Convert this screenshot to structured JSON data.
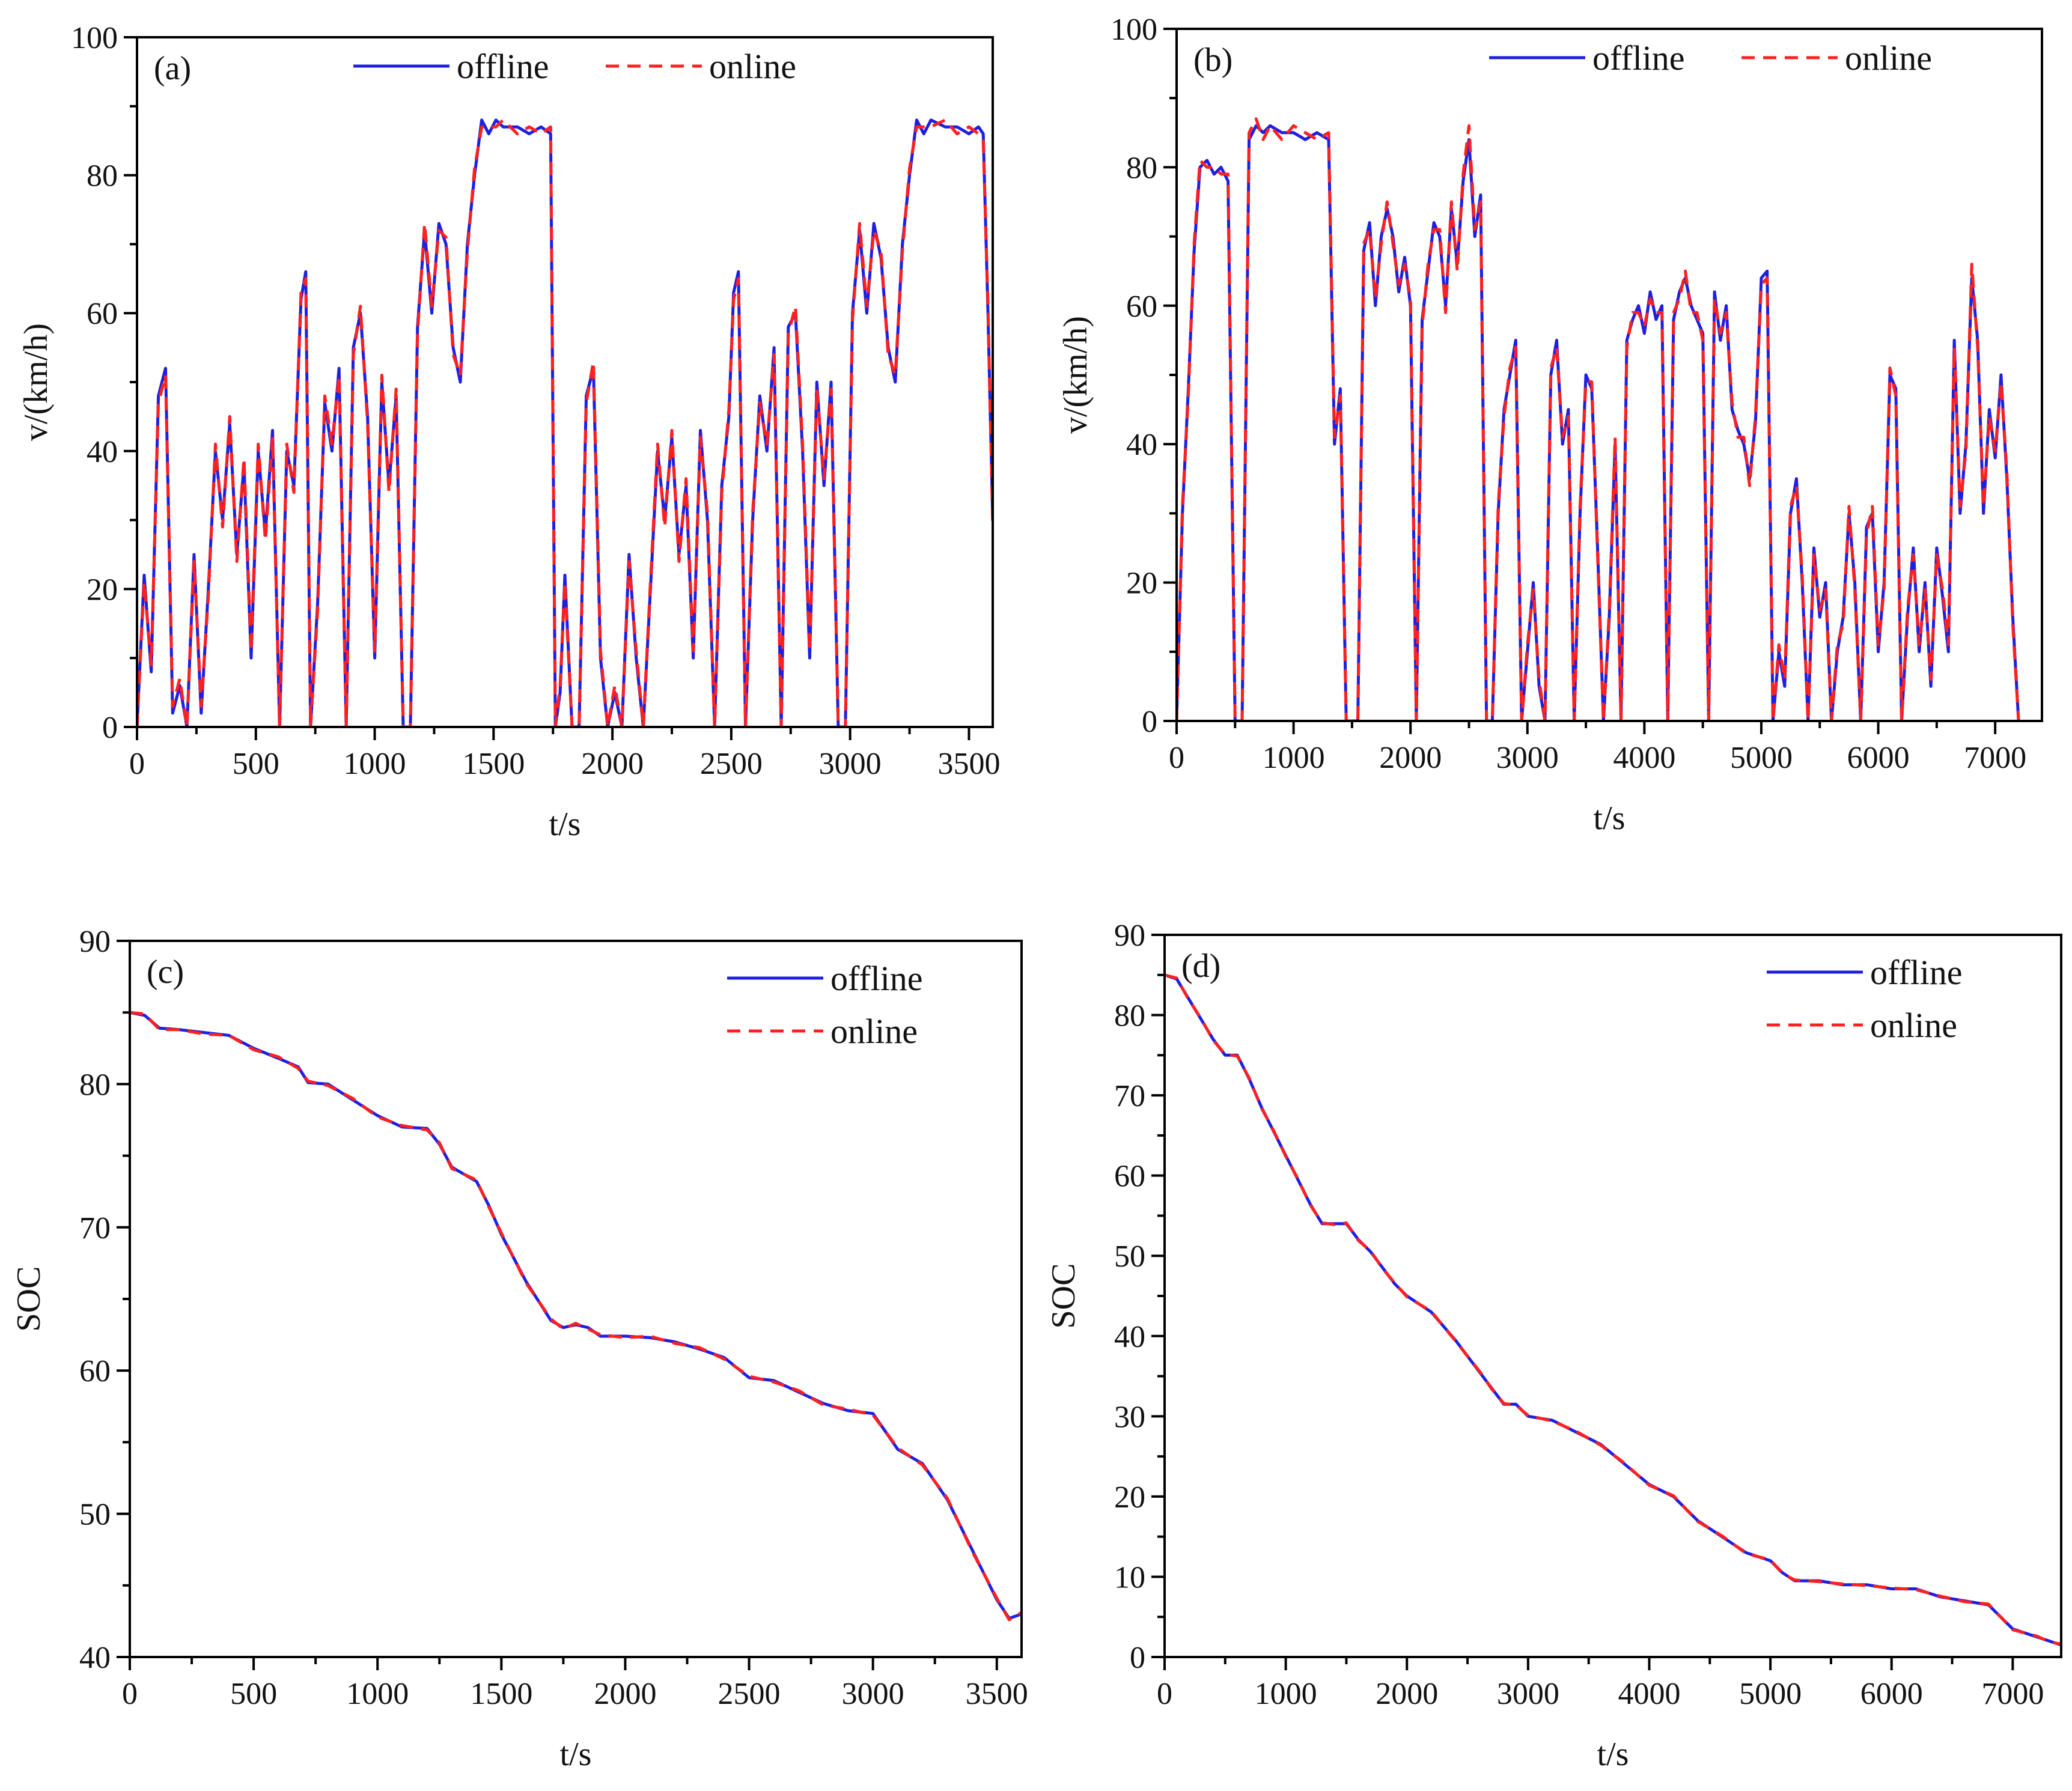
{
  "colors": {
    "offline": "#1f1fe0",
    "online": "#ff2020",
    "axis": "#000000"
  },
  "chart_data": [
    {
      "type": "line",
      "panel": "(a)",
      "xlabel": "t/s",
      "ylabel": "v/(km/h)",
      "xlim": [
        0,
        3600
      ],
      "ylim": [
        0,
        100
      ],
      "xticks": [
        0,
        500,
        1000,
        1500,
        2000,
        2500,
        3000,
        3500
      ],
      "yticks": [
        0,
        20,
        40,
        60,
        80,
        100
      ],
      "legend": [
        "offline",
        "online"
      ],
      "legend_layout": "horizontal",
      "legend_position": "top-center",
      "series_key": "speed",
      "x": [
        0,
        30,
        60,
        90,
        120,
        150,
        180,
        210,
        240,
        270,
        300,
        330,
        360,
        390,
        420,
        450,
        480,
        510,
        540,
        570,
        600,
        630,
        660,
        690,
        710,
        730,
        760,
        790,
        820,
        850,
        880,
        910,
        940,
        970,
        1000,
        1030,
        1060,
        1090,
        1120,
        1150,
        1180,
        1210,
        1240,
        1270,
        1300,
        1330,
        1360,
        1390,
        1420,
        1450,
        1480,
        1510,
        1540,
        1600,
        1650,
        1700,
        1740,
        1760,
        1780,
        1800,
        1830,
        1860,
        1890,
        1920,
        1950,
        1980,
        2010,
        2040,
        2070,
        2100,
        2130,
        2160,
        2190,
        2220,
        2250,
        2280,
        2310,
        2340,
        2370,
        2400,
        2430,
        2460,
        2490,
        2510,
        2530,
        2560,
        2590,
        2620,
        2650,
        2680,
        2710,
        2740,
        2770,
        2800,
        2830,
        2860,
        2890,
        2920,
        2950,
        2980,
        3010,
        3040,
        3070,
        3100,
        3130,
        3160,
        3190,
        3220,
        3250,
        3280,
        3310,
        3340,
        3400,
        3450,
        3500,
        3540,
        3560,
        3580,
        3600
      ],
      "offline": [
        0,
        22,
        8,
        48,
        52,
        2,
        6,
        0,
        25,
        2,
        20,
        40,
        30,
        44,
        25,
        38,
        10,
        40,
        28,
        43,
        0,
        40,
        35,
        62,
        66,
        0,
        18,
        47,
        40,
        52,
        0,
        55,
        60,
        45,
        10,
        50,
        35,
        48,
        0,
        0,
        58,
        72,
        60,
        73,
        70,
        55,
        50,
        70,
        80,
        88,
        86,
        88,
        87,
        87,
        86,
        87,
        86,
        0,
        5,
        22,
        0,
        0,
        48,
        52,
        10,
        0,
        5,
        0,
        25,
        10,
        0,
        20,
        40,
        30,
        42,
        25,
        35,
        10,
        43,
        30,
        0,
        35,
        45,
        63,
        66,
        0,
        30,
        48,
        40,
        55,
        0,
        58,
        60,
        40,
        10,
        50,
        35,
        50,
        0,
        0,
        60,
        72,
        60,
        73,
        68,
        55,
        50,
        70,
        80,
        88,
        86,
        88,
        87,
        87,
        86,
        87,
        86,
        60,
        30,
        0
      ],
      "online": [
        0,
        21,
        9,
        47,
        51,
        3,
        7,
        0,
        24,
        3,
        19,
        41,
        29,
        45,
        24,
        39,
        11,
        41,
        27,
        42,
        0,
        41,
        34,
        63,
        65,
        0,
        17,
        48,
        41,
        51,
        0,
        54,
        61,
        44,
        11,
        51,
        34,
        49,
        0,
        0,
        57,
        73,
        61,
        72,
        71,
        54,
        51,
        69,
        81,
        87,
        87,
        87,
        88,
        86,
        87,
        86,
        87,
        0,
        6,
        21,
        0,
        0,
        47,
        53,
        11,
        0,
        6,
        0,
        24,
        11,
        0,
        21,
        41,
        29,
        43,
        24,
        36,
        11,
        42,
        31,
        0,
        34,
        46,
        62,
        65,
        0,
        31,
        47,
        41,
        54,
        0,
        57,
        61,
        41,
        11,
        49,
        36,
        49,
        0,
        0,
        59,
        73,
        61,
        72,
        69,
        54,
        51,
        69,
        81,
        87,
        87,
        87,
        88,
        86,
        87,
        86,
        85,
        61,
        29,
        0
      ]
    },
    {
      "type": "line",
      "panel": "(b)",
      "xlabel": "t/s",
      "ylabel": "v/(km/h)",
      "xlim": [
        0,
        7400
      ],
      "ylim": [
        0,
        100
      ],
      "xticks": [
        0,
        1000,
        2000,
        3000,
        4000,
        5000,
        6000,
        7000
      ],
      "yticks": [
        0,
        20,
        40,
        60,
        80,
        100
      ],
      "legend": [
        "offline",
        "online"
      ],
      "legend_layout": "horizontal",
      "legend_position": "top-right",
      "series_key": "speed",
      "x": [
        0,
        50,
        100,
        150,
        200,
        260,
        320,
        380,
        440,
        500,
        540,
        560,
        620,
        680,
        740,
        800,
        900,
        1000,
        1100,
        1200,
        1300,
        1350,
        1400,
        1450,
        1500,
        1550,
        1600,
        1650,
        1700,
        1750,
        1800,
        1850,
        1900,
        1950,
        2000,
        2050,
        2100,
        2150,
        2200,
        2250,
        2300,
        2350,
        2400,
        2450,
        2500,
        2550,
        2600,
        2650,
        2700,
        2750,
        2800,
        2850,
        2900,
        2950,
        3000,
        3050,
        3100,
        3150,
        3200,
        3250,
        3300,
        3350,
        3400,
        3450,
        3500,
        3550,
        3600,
        3650,
        3700,
        3750,
        3800,
        3850,
        3900,
        3950,
        4000,
        4050,
        4100,
        4150,
        4200,
        4250,
        4300,
        4350,
        4400,
        4450,
        4500,
        4550,
        4600,
        4650,
        4700,
        4750,
        4800,
        4850,
        4900,
        4950,
        5000,
        5050,
        5100,
        5150,
        5200,
        5250,
        5300,
        5350,
        5400,
        5450,
        5500,
        5550,
        5600,
        5650,
        5700,
        5750,
        5800,
        5850,
        5900,
        5950,
        6000,
        6050,
        6100,
        6150,
        6200,
        6250,
        6300,
        6350,
        6400,
        6450,
        6500,
        6550,
        6600,
        6650,
        6700,
        6750,
        6800,
        6850,
        6900,
        6950,
        7000,
        7050,
        7100,
        7150,
        7200,
        7250,
        7300,
        7350,
        7400
      ],
      "offline": [
        0,
        30,
        48,
        68,
        80,
        81,
        79,
        80,
        78,
        0,
        0,
        0,
        84,
        86,
        85,
        86,
        85,
        85,
        84,
        85,
        84,
        40,
        48,
        0,
        0,
        0,
        68,
        72,
        60,
        70,
        74,
        70,
        62,
        67,
        60,
        0,
        58,
        65,
        72,
        70,
        60,
        74,
        66,
        78,
        84,
        70,
        76,
        0,
        0,
        30,
        45,
        50,
        55,
        0,
        10,
        20,
        5,
        0,
        50,
        55,
        40,
        45,
        0,
        30,
        50,
        48,
        25,
        0,
        15,
        40,
        0,
        55,
        58,
        60,
        56,
        62,
        58,
        60,
        0,
        58,
        62,
        64,
        60,
        58,
        56,
        0,
        62,
        55,
        60,
        45,
        42,
        40,
        35,
        43,
        64,
        65,
        0,
        10,
        5,
        30,
        35,
        20,
        0,
        25,
        15,
        20,
        0,
        10,
        15,
        30,
        20,
        0,
        28,
        30,
        10,
        20,
        50,
        48,
        0,
        15,
        25,
        10,
        20,
        5,
        25,
        18,
        10,
        55,
        30,
        40,
        64,
        55,
        30,
        45,
        38,
        50,
        35,
        15,
        0
      ],
      "online": [
        0,
        31,
        47,
        69,
        81,
        80,
        80,
        79,
        79,
        0,
        0,
        0,
        85,
        87,
        84,
        86,
        84,
        86,
        85,
        84,
        85,
        41,
        47,
        0,
        0,
        0,
        69,
        71,
        61,
        69,
        75,
        69,
        63,
        66,
        61,
        0,
        57,
        66,
        71,
        71,
        59,
        75,
        65,
        79,
        86,
        71,
        75,
        0,
        0,
        31,
        44,
        51,
        54,
        0,
        11,
        19,
        6,
        0,
        51,
        54,
        41,
        44,
        0,
        31,
        49,
        49,
        24,
        0,
        16,
        41,
        0,
        54,
        59,
        59,
        57,
        61,
        59,
        59,
        0,
        59,
        61,
        65,
        59,
        59,
        55,
        0,
        61,
        56,
        59,
        46,
        41,
        41,
        34,
        44,
        63,
        64,
        0,
        11,
        6,
        31,
        34,
        21,
        0,
        24,
        16,
        19,
        0,
        11,
        14,
        31,
        19,
        0,
        27,
        31,
        11,
        19,
        51,
        47,
        0,
        16,
        24,
        11,
        19,
        6,
        24,
        19,
        11,
        54,
        31,
        39,
        66,
        54,
        31,
        44,
        39,
        49,
        36,
        14,
        0
      ]
    },
    {
      "type": "line",
      "panel": "(c)",
      "xlabel": "t/s",
      "ylabel": "SOC",
      "xlim": [
        0,
        3600
      ],
      "ylim": [
        40,
        90
      ],
      "xticks": [
        0,
        500,
        1000,
        1500,
        2000,
        2500,
        3000,
        3500
      ],
      "yticks": [
        40,
        50,
        60,
        70,
        80,
        90
      ],
      "legend": [
        "offline",
        "online"
      ],
      "legend_layout": "vertical",
      "legend_position": "top-right",
      "series_key": "soc",
      "x": [
        0,
        60,
        120,
        200,
        300,
        400,
        500,
        600,
        680,
        720,
        800,
        900,
        1000,
        1100,
        1200,
        1250,
        1300,
        1400,
        1450,
        1500,
        1600,
        1700,
        1750,
        1800,
        1850,
        1900,
        2000,
        2100,
        2200,
        2300,
        2400,
        2500,
        2600,
        2700,
        2800,
        2900,
        3000,
        3100,
        3200,
        3300,
        3400,
        3500,
        3550,
        3600
      ],
      "offline": [
        85,
        84.8,
        83.9,
        83.8,
        83.6,
        83.4,
        82.5,
        81.8,
        81.2,
        80.1,
        80.0,
        78.9,
        77.8,
        77.0,
        76.9,
        75.8,
        74.2,
        73.2,
        71.5,
        69.5,
        66.2,
        63.5,
        63.0,
        63.2,
        63.0,
        62.4,
        62.4,
        62.3,
        62.0,
        61.5,
        60.9,
        59.5,
        59.3,
        58.5,
        57.7,
        57.2,
        57.0,
        54.5,
        53.5,
        51.0,
        47.5,
        44.0,
        42.7,
        43.0
      ],
      "online": [
        85,
        84.9,
        83.8,
        83.8,
        83.5,
        83.4,
        82.4,
        81.9,
        81.1,
        80.2,
        79.9,
        79.0,
        77.7,
        77.1,
        76.8,
        75.9,
        74.1,
        73.3,
        71.4,
        69.6,
        66.1,
        63.6,
        62.9,
        63.3,
        62.9,
        62.5,
        62.3,
        62.4,
        61.9,
        61.6,
        60.8,
        59.6,
        59.2,
        58.6,
        57.6,
        57.3,
        56.9,
        54.6,
        53.4,
        51.1,
        47.4,
        44.1,
        42.6,
        43.1
      ]
    },
    {
      "type": "line",
      "panel": "(d)",
      "xlabel": "t/s",
      "ylabel": "SOC",
      "xlim": [
        0,
        7400
      ],
      "ylim": [
        0,
        90
      ],
      "xticks": [
        0,
        1000,
        2000,
        3000,
        4000,
        5000,
        6000,
        7000
      ],
      "yticks": [
        0,
        10,
        20,
        30,
        40,
        50,
        60,
        70,
        80,
        90
      ],
      "legend": [
        "offline",
        "online"
      ],
      "legend_layout": "vertical",
      "legend_position": "top-right",
      "series_key": "soc",
      "x": [
        0,
        100,
        200,
        300,
        400,
        500,
        600,
        700,
        800,
        900,
        1000,
        1100,
        1200,
        1300,
        1400,
        1500,
        1600,
        1700,
        1800,
        1900,
        2000,
        2200,
        2400,
        2600,
        2700,
        2800,
        2900,
        3000,
        3200,
        3400,
        3600,
        3800,
        4000,
        4200,
        4400,
        4600,
        4800,
        5000,
        5100,
        5200,
        5400,
        5600,
        5800,
        6000,
        6200,
        6400,
        6600,
        6800,
        7000,
        7200,
        7300,
        7400
      ],
      "offline": [
        85,
        84.5,
        82,
        79.5,
        77,
        75,
        75,
        72,
        68.5,
        65.5,
        62.5,
        59.5,
        56.5,
        54,
        54,
        54,
        52,
        50.5,
        48.5,
        46.5,
        45,
        43,
        39.5,
        35.5,
        33.5,
        31.5,
        31.5,
        30,
        29.5,
        28,
        26.5,
        24,
        21.5,
        20,
        17,
        15,
        13,
        12,
        10.5,
        9.5,
        9.5,
        9,
        9,
        8.5,
        8.5,
        7.5,
        7,
        6.5,
        3.5,
        2.5,
        2,
        1.5
      ],
      "online": [
        85,
        84.6,
        81.9,
        79.6,
        76.9,
        75.1,
        74.9,
        72.1,
        68.4,
        65.6,
        62.4,
        59.6,
        56.4,
        54.1,
        53.9,
        54.1,
        51.9,
        50.6,
        48.4,
        46.6,
        44.9,
        43.1,
        39.4,
        35.6,
        33.4,
        31.6,
        31.4,
        30.1,
        29.4,
        28.1,
        26.4,
        24.1,
        21.4,
        20.1,
        16.9,
        15.1,
        12.9,
        12.1,
        10.4,
        9.6,
        9.4,
        9.1,
        8.9,
        8.6,
        8.4,
        7.6,
        6.9,
        6.6,
        3.4,
        2.6,
        1.9,
        1.6
      ]
    }
  ]
}
